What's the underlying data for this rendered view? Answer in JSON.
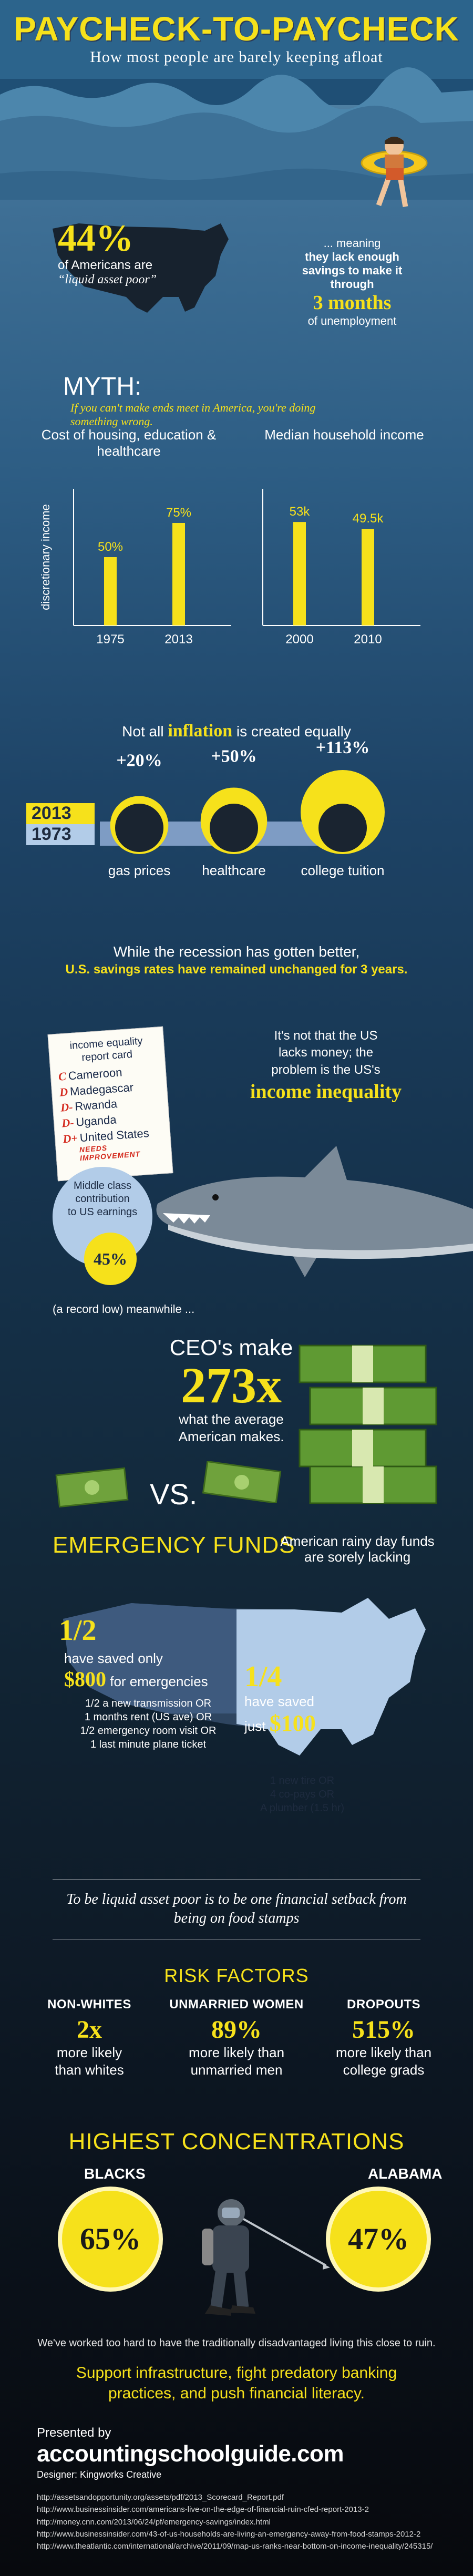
{
  "header": {
    "title": "PAYCHECK-TO-PAYCHECK",
    "subtitle": "How most people are barely keeping afloat"
  },
  "liquid_poor": {
    "percent": "44%",
    "line1": "of Americans are",
    "line2": "“liquid asset poor”",
    "meaning1": "... meaning",
    "meaning2": "they lack enough",
    "meaning3": "savings to make it",
    "meaning4": "through",
    "months": "3 months",
    "months_suffix": "of unemployment"
  },
  "myth": {
    "label": "MYTH:",
    "text": "If you can't make ends meet in America, you're doing something wrong."
  },
  "chart_data": [
    {
      "type": "bar",
      "title": "Cost of housing, education & healthcare",
      "ylabel": "discretionary income",
      "categories": [
        "1975",
        "2013"
      ],
      "values": [
        50,
        75
      ],
      "value_labels": [
        "50%",
        "75%"
      ],
      "ylim": [
        0,
        100
      ]
    },
    {
      "type": "bar",
      "title": "Median household income",
      "categories": [
        "2000",
        "2010"
      ],
      "values": [
        53,
        49.5
      ],
      "value_labels": [
        "53k",
        "49.5k"
      ],
      "ylim": [
        0,
        70
      ]
    },
    {
      "type": "bubble",
      "title": "Not all inflation is created equally",
      "categories": [
        "gas prices",
        "healthcare",
        "college tuition"
      ],
      "values": [
        20,
        50,
        113
      ],
      "value_labels": [
        "+20%",
        "+50%",
        "+113%"
      ],
      "legend": [
        "2013",
        "1973"
      ]
    }
  ],
  "inflation": {
    "pre": "Not all",
    "word": "inflation",
    "post": "is created equally",
    "year_new": "2013",
    "year_old": "1973"
  },
  "recession": {
    "line1": "While the recession has gotten better,",
    "line2": "U.S. savings rates have remained unchanged for 3 years."
  },
  "report_card": {
    "title": "income equality report card",
    "rows": [
      {
        "grade": "C",
        "country": "Cameroon"
      },
      {
        "grade": "D",
        "country": "Madegascar"
      },
      {
        "grade": "D-",
        "country": "Rwanda"
      },
      {
        "grade": "D-",
        "country": "Uganda"
      },
      {
        "grade": "D+",
        "country": "United States"
      }
    ],
    "note": "NEEDS IMPROVEMENT"
  },
  "inequality": {
    "line1": "It's not that the US",
    "line2": "lacks money; the",
    "line3": "problem is the US's",
    "emph": "income inequality"
  },
  "middle_class": {
    "line1": "Middle class",
    "line2": "contribution",
    "line3": "to US earnings",
    "pct": "45%",
    "note": "(a record low) meanwhile ..."
  },
  "ceo": {
    "line1": "CEO's make",
    "multiple": "273x",
    "line2": "what the average",
    "line3": "American makes.",
    "vs": "VS."
  },
  "emergency": {
    "title": "EMERGENCY FUNDS",
    "rainy": "American rainy day funds are sorely lacking",
    "half_frac": "1/2",
    "half_text1": "have saved only",
    "half_amount": "$800",
    "half_text2": "for emergencies",
    "half_list": [
      "1/2 a new transmission OR",
      "1 months rent (US ave) OR",
      "1/2 emergency room visit OR",
      "1 last minute plane ticket"
    ],
    "quarter_frac": "1/4",
    "quarter_text1": "have saved",
    "quarter_text2": "just",
    "quarter_amount": "$100",
    "quarter_list": [
      "1 new tire OR",
      "4 co-pays OR",
      "A plumber (1.5 hr)"
    ]
  },
  "liquid_note": "To be liquid asset poor is to be one financial setback from being on food stamps",
  "risk": {
    "title": "RISK FACTORS",
    "items": [
      {
        "head": "NON-WHITES",
        "value": "2x",
        "text1": "more likely",
        "text2": "than whites"
      },
      {
        "head": "UNMARRIED WOMEN",
        "value": "89%",
        "text1": "more likely than",
        "text2": "unmarried men"
      },
      {
        "head": "DROPOUTS",
        "value": "515%",
        "text1": "more likely than",
        "text2": "college grads"
      }
    ]
  },
  "concentrations": {
    "title": "HIGHEST CONCENTRATIONS",
    "blacks_label": "BLACKS",
    "blacks_value": "65%",
    "alabama_label": "ALABAMA",
    "alabama_value": "47%"
  },
  "closing": {
    "worked": "We've worked too hard to have the traditionally disadvantaged living this close to ruin.",
    "support": "Support infrastructure, fight predatory banking practices, and push financial literacy."
  },
  "credits": {
    "presented": "Presented by",
    "site": "accountingschoolguide.com",
    "designer": "Designer: Kingworks Creative"
  },
  "sources": [
    "http://assetsandopportunity.org/assets/pdf/2013_Scorecard_Report.pdf",
    "http://www.businessinsider.com/americans-live-on-the-edge-of-financial-ruin-cfed-report-2013-2",
    "http://money.cnn.com/2013/06/24/pf/emergency-savings/index.html",
    "http://www.businessinsider.com/43-of-us-households-are-living-an-emergency-away-from-food-stamps-2012-2",
    "http://www.theatlantic.com/international/archive/2011/09/map-us-ranks-near-bottom-on-income-inequality/245315/"
  ],
  "colors": {
    "accent": "#f6e11b",
    "light_blue": "#b2cce8",
    "ocean_top": "#5d8fb0",
    "ocean_bottom": "#07090d"
  }
}
